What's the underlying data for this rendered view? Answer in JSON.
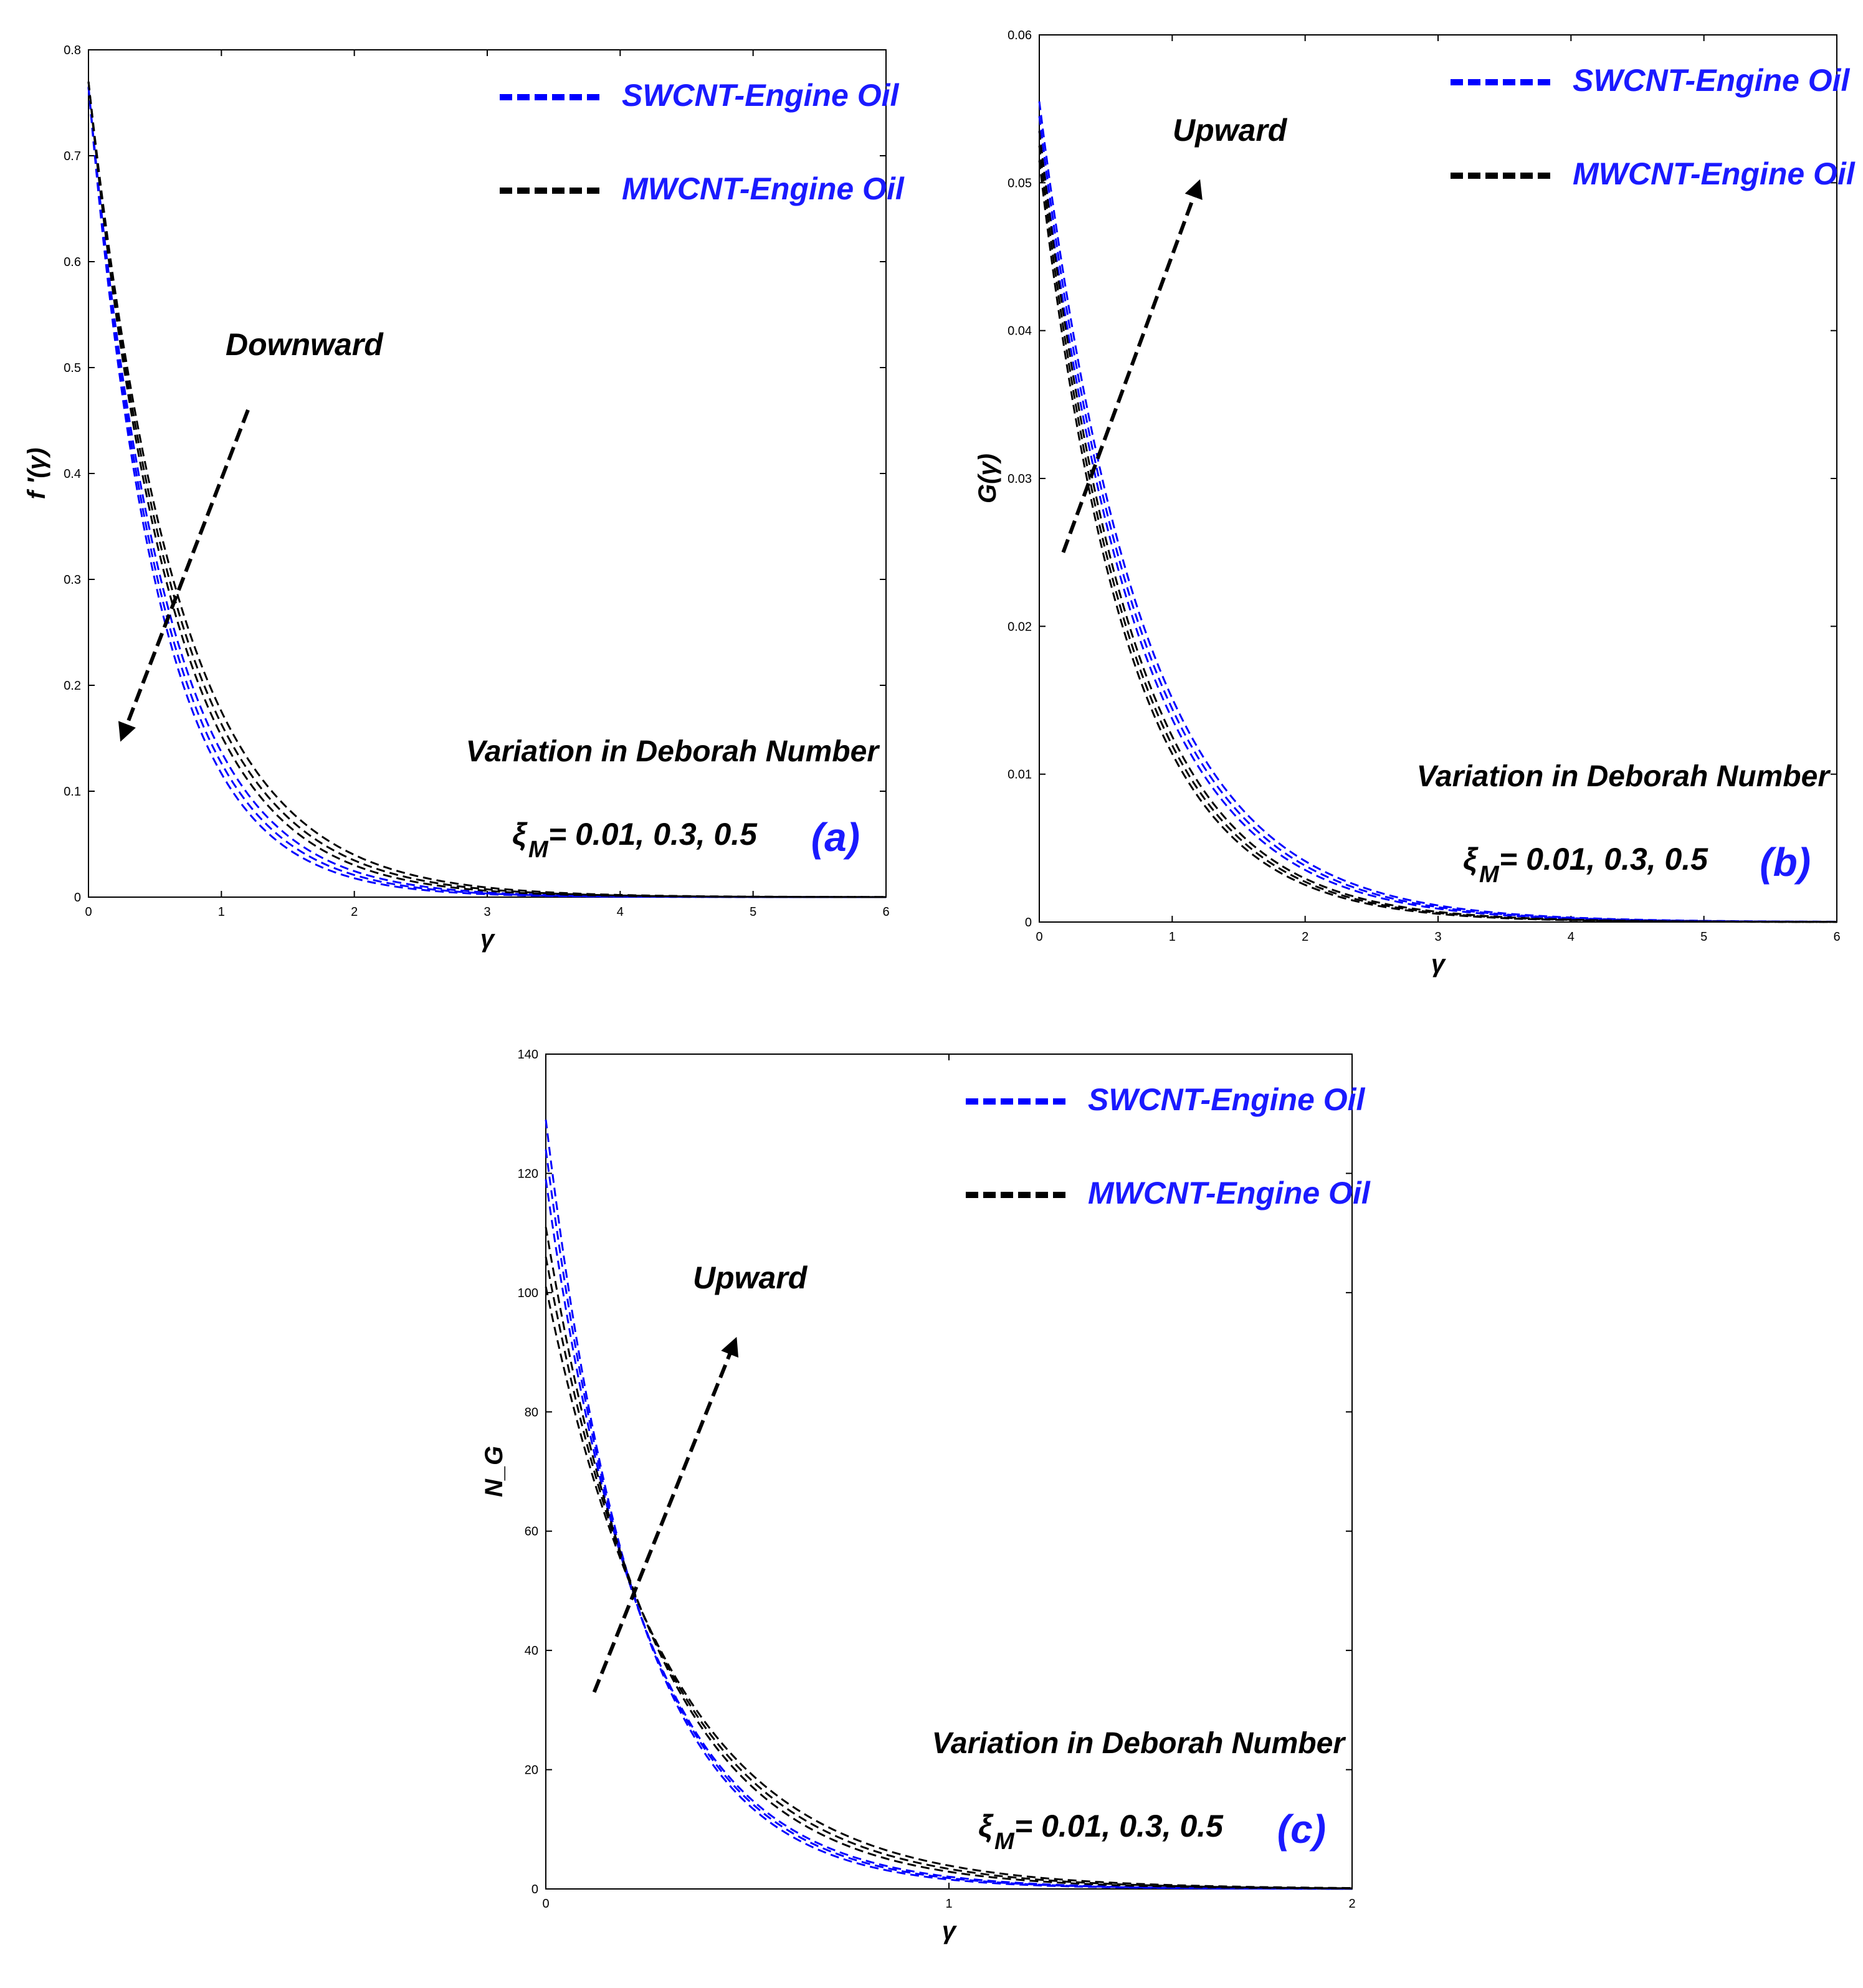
{
  "colors": {
    "swcnt": "#0000ff",
    "mwcnt": "#000000",
    "panel_label": "#1a1aff",
    "legend_text": "#1a1aff"
  },
  "chart_data": [
    {
      "id": "a",
      "type": "line",
      "panel_label": "(a)",
      "xlabel": "γ",
      "ylabel": "f ′(γ)",
      "xlim": [
        0,
        6
      ],
      "ylim": [
        0,
        0.8
      ],
      "xticks": [
        0,
        1,
        2,
        3,
        4,
        5,
        6
      ],
      "yticks": [
        0,
        0.1,
        0.2,
        0.3,
        0.4,
        0.5,
        0.6,
        0.7,
        0.8
      ],
      "legend": [
        "SWCNT-Engine Oil",
        "MWCNT-Engine Oil"
      ],
      "annotation": "Downward",
      "variation_text": "Variation in Deborah Number",
      "parameter_symbol": "ξ",
      "parameter_sub": "M",
      "parameter_values": " = 0.01, 0.3, 0.5",
      "arrow": {
        "from": [
          1.2,
          0.46
        ],
        "to": [
          0.25,
          0.15
        ]
      },
      "grid": false,
      "legend_position": "top-right",
      "series": [
        {
          "group": "SWCNT-Engine Oil",
          "y0": 0.765,
          "k": 1.88
        },
        {
          "group": "SWCNT-Engine Oil",
          "y0": 0.765,
          "k": 1.8
        },
        {
          "group": "SWCNT-Engine Oil",
          "y0": 0.765,
          "k": 1.72
        },
        {
          "group": "MWCNT-Engine Oil",
          "y0": 0.77,
          "k": 1.62
        },
        {
          "group": "MWCNT-Engine Oil",
          "y0": 0.77,
          "k": 1.55
        },
        {
          "group": "MWCNT-Engine Oil",
          "y0": 0.77,
          "k": 1.48
        }
      ]
    },
    {
      "id": "b",
      "type": "line",
      "panel_label": "(b)",
      "xlabel": "γ",
      "ylabel": "G(γ)",
      "xlim": [
        0,
        6
      ],
      "ylim": [
        0,
        0.06
      ],
      "xticks": [
        0,
        1,
        2,
        3,
        4,
        5,
        6
      ],
      "yticks": [
        0,
        0.01,
        0.02,
        0.03,
        0.04,
        0.05,
        0.06
      ],
      "legend": [
        "SWCNT-Engine Oil",
        "MWCNT-Engine Oil"
      ],
      "annotation": "Upward",
      "variation_text": "Variation in Deborah Number",
      "parameter_symbol": "ξ",
      "parameter_sub": "M",
      "parameter_values": " = 0.01, 0.3, 0.5",
      "arrow": {
        "from": [
          0.18,
          0.025
        ],
        "to": [
          1.2,
          0.05
        ]
      },
      "grid": false,
      "legend_position": "top-right",
      "series": [
        {
          "group": "SWCNT-Engine Oil",
          "y0": 0.0555,
          "k": 1.3
        },
        {
          "group": "SWCNT-Engine Oil",
          "y0": 0.0545,
          "k": 1.33
        },
        {
          "group": "SWCNT-Engine Oil",
          "y0": 0.0535,
          "k": 1.36
        },
        {
          "group": "MWCNT-Engine Oil",
          "y0": 0.0535,
          "k": 1.45
        },
        {
          "group": "MWCNT-Engine Oil",
          "y0": 0.0525,
          "k": 1.48
        },
        {
          "group": "MWCNT-Engine Oil",
          "y0": 0.0515,
          "k": 1.51
        }
      ]
    },
    {
      "id": "c",
      "type": "line",
      "panel_label": "(c)",
      "xlabel": "γ",
      "ylabel": "N_G",
      "xlim": [
        0,
        2
      ],
      "ylim": [
        0,
        140
      ],
      "xticks": [
        0,
        1,
        2
      ],
      "yticks": [
        0,
        20,
        40,
        60,
        80,
        100,
        120,
        140
      ],
      "legend": [
        "SWCNT-Engine Oil",
        "MWCNT-Engine Oil"
      ],
      "annotation": "Upward",
      "variation_text": "Variation in Deborah Number",
      "parameter_symbol": "ξ",
      "parameter_sub": "M",
      "parameter_values": " = 0.01, 0.3, 0.5",
      "arrow": {
        "from": [
          0.12,
          33
        ],
        "to": [
          0.47,
          92
        ]
      },
      "grid": false,
      "legend_position": "top-right",
      "series": [
        {
          "group": "SWCNT-Engine Oil",
          "y0": 129,
          "k": 4.4
        },
        {
          "group": "SWCNT-Engine Oil",
          "y0": 124,
          "k": 4.22
        },
        {
          "group": "SWCNT-Engine Oil",
          "y0": 119,
          "k": 4.06
        },
        {
          "group": "MWCNT-Engine Oil",
          "y0": 111,
          "k": 3.65
        },
        {
          "group": "MWCNT-Engine Oil",
          "y0": 106,
          "k": 3.45
        },
        {
          "group": "MWCNT-Engine Oil",
          "y0": 101,
          "k": 3.25
        }
      ]
    }
  ]
}
